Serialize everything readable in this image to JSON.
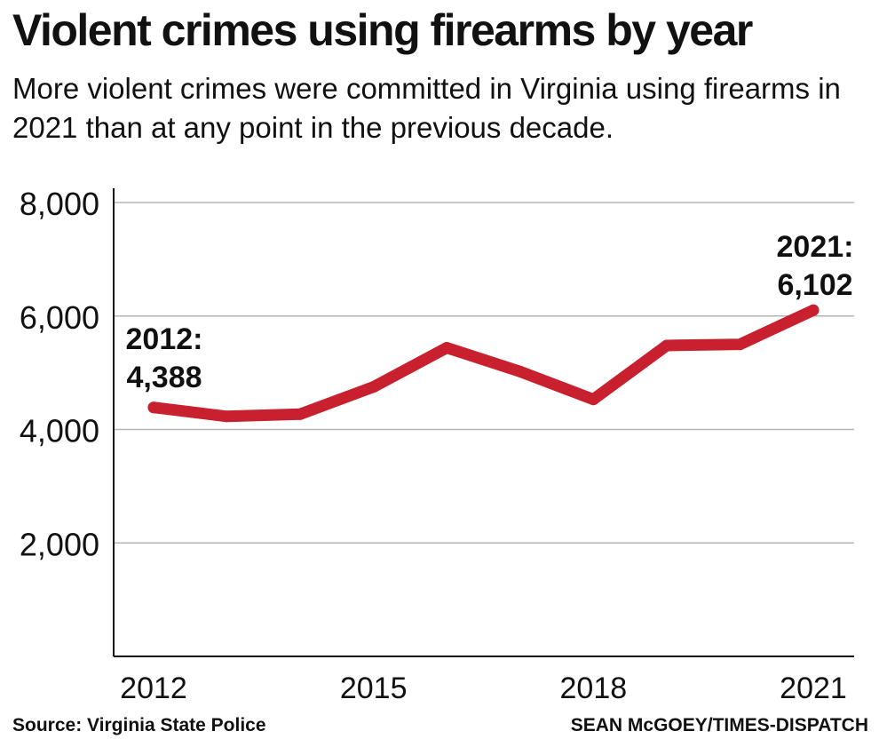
{
  "title": "Violent crimes using firearms by  year",
  "subtitle": "More violent crimes were committed in Virginia using firearms in 2021 than at any point in the previous decade.",
  "source": "Source: Virginia State Police",
  "credit": "SEAN McGOEY/TIMES-DISPATCH",
  "colors": {
    "line": "#c8202f",
    "grid": "#b5b5b5",
    "axis": "#111111"
  },
  "chart_data": {
    "type": "line",
    "title": "Violent crimes using firearms by  year",
    "xlabel": "",
    "ylabel": "",
    "x": [
      2012,
      2013,
      2014,
      2015,
      2016,
      2017,
      2018,
      2019,
      2020,
      2021
    ],
    "series": [
      {
        "values": [
          4388,
          4230,
          4270,
          4750,
          5440,
          5020,
          4530,
          5480,
          5500,
          6102
        ]
      }
    ],
    "ylim": [
      0,
      8000
    ],
    "xlim": [
      2012,
      2021
    ],
    "yticks": [
      2000,
      4000,
      6000,
      8000
    ],
    "ytick_labels": [
      "2,000",
      "4,000",
      "6,000",
      "8,000"
    ],
    "xticks": [
      2012,
      2015,
      2018,
      2021
    ],
    "xtick_labels": [
      "2012",
      "2015",
      "2018",
      "2021"
    ],
    "grid": "horizontal",
    "annotations": [
      {
        "year": "2012:",
        "value": "4,388"
      },
      {
        "year": "2021:",
        "value": "6,102"
      }
    ]
  }
}
